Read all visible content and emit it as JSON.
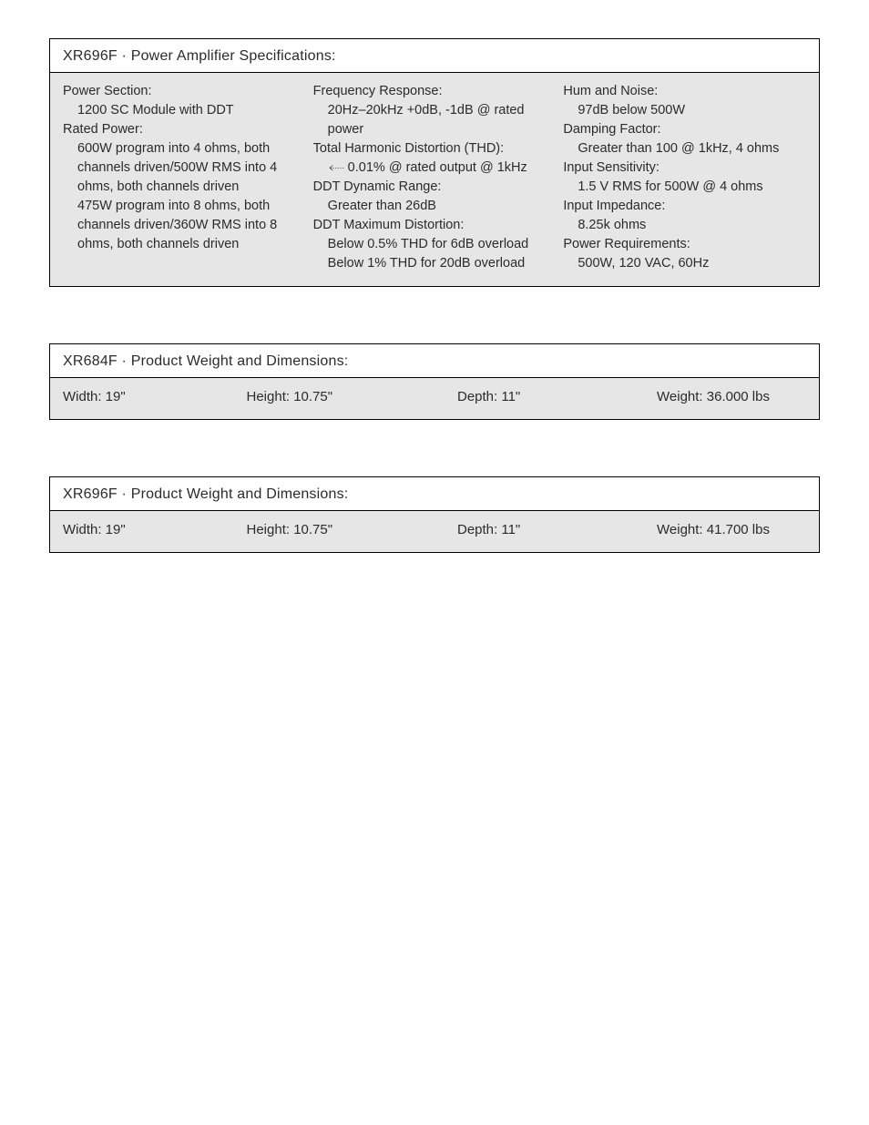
{
  "box1": {
    "title": "XR696F · Power Amplifier Specifications:",
    "col1": [
      {
        "label": "Power Section:",
        "values": [
          "1200 SC Module with DDT"
        ]
      },
      {
        "label": "Rated Power:",
        "values": [
          "600W program into 4 ohms, both channels driven/500W RMS into 4 ohms, both channels driven",
          "475W program into 8 ohms, both channels driven/360W RMS into 8 ohms, both channels driven"
        ]
      }
    ],
    "col2": [
      {
        "label": "Frequency Response:",
        "values": [
          "20Hz–20kHz +0dB, -1dB @ rated power"
        ]
      },
      {
        "label": "Total Harmonic Distortion (THD):",
        "values": [
          "0.01% @ rated output @ 1kHz"
        ],
        "arrow": true
      },
      {
        "label": "DDT Dynamic Range:",
        "values": [
          "Greater than 26dB"
        ]
      },
      {
        "label": "DDT Maximum Distortion:",
        "values": [
          "Below 0.5% THD for 6dB overload",
          "Below 1% THD for 20dB overload"
        ]
      }
    ],
    "col3": [
      {
        "label": "Hum and Noise:",
        "values": [
          "97dB below 500W"
        ]
      },
      {
        "label": "Damping Factor:",
        "values": [
          "Greater than 100 @ 1kHz, 4 ohms"
        ]
      },
      {
        "label": "Input Sensitivity:",
        "values": [
          "1.5 V RMS for 500W @ 4 ohms"
        ]
      },
      {
        "label": "Input Impedance:",
        "values": [
          "8.25k ohms"
        ]
      },
      {
        "label": "Power Requirements:",
        "values": [
          "500W, 120 VAC, 60Hz"
        ]
      }
    ]
  },
  "box2": {
    "title": "XR684F · Product Weight and Dimensions:",
    "cells": [
      "Width: 19\"",
      "Height: 10.75\"",
      "Depth: 11\"",
      "Weight: 36.000 lbs"
    ]
  },
  "box3": {
    "title": "XR696F · Product Weight and Dimensions:",
    "cells": [
      "Width: 19\"",
      "Height: 10.75\"",
      "Depth: 11\"",
      "Weight: 41.700 lbs"
    ]
  },
  "colors": {
    "page_bg": "#ffffff",
    "body_bg": "#e6e6e6",
    "text": "#2b2b2b",
    "border": "#000000"
  }
}
